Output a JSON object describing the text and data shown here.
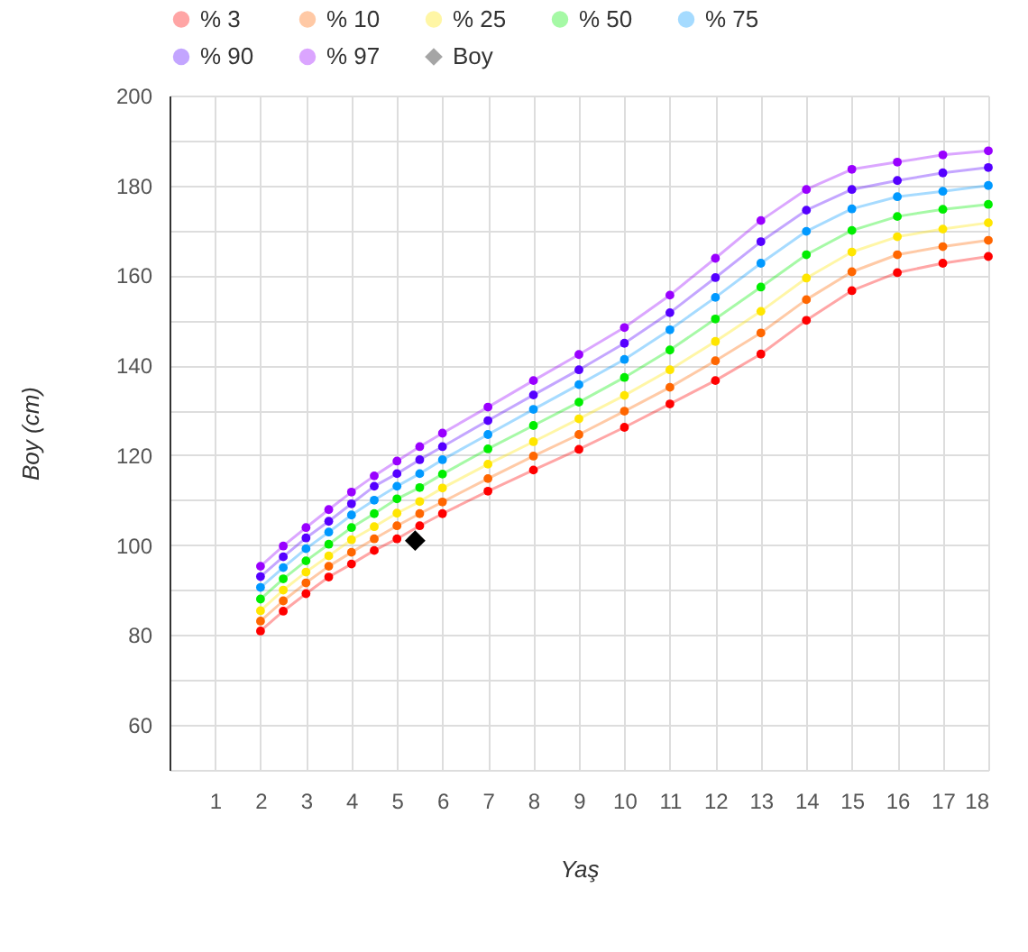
{
  "chart_data": {
    "type": "line",
    "xlabel": "Yaş",
    "ylabel": "Boy (cm)",
    "x": [
      2,
      2.5,
      3,
      3.5,
      4,
      4.5,
      5,
      5.5,
      6,
      7,
      8,
      9,
      10,
      11,
      12,
      13,
      14,
      15,
      16,
      17,
      18
    ],
    "xlim": [
      0,
      18
    ],
    "xticks": [
      1,
      2,
      3,
      4,
      5,
      6,
      7,
      8,
      9,
      10,
      11,
      12,
      13,
      14,
      15,
      16,
      17,
      18
    ],
    "ylim": [
      50,
      200
    ],
    "yticks": [
      {
        "value": 50,
        "label": null
      },
      60,
      {
        "value": 70,
        "label": null
      },
      80,
      {
        "value": 90,
        "label": null
      },
      100,
      {
        "value": 110,
        "label": null
      },
      120,
      {
        "value": 130,
        "label": null
      },
      140,
      {
        "value": 150,
        "label": null
      },
      160,
      {
        "value": 170,
        "label": null
      },
      180,
      {
        "value": 190,
        "label": null
      },
      200
    ],
    "grid": true,
    "legend": "top",
    "marker": "circle",
    "line_style": "solid",
    "series": [
      {
        "name": "% 3",
        "color": "#ff0000",
        "values": [
          80.9,
          85.3,
          89.2,
          92.9,
          95.8,
          98.8,
          101.4,
          104.3,
          107.0,
          112.0,
          116.7,
          121.3,
          126.2,
          131.4,
          136.6,
          142.5,
          150.0,
          156.6,
          160.6,
          162.7,
          164.2
        ]
      },
      {
        "name": "% 10",
        "color": "#ff6600",
        "values": [
          83.1,
          87.6,
          91.6,
          95.3,
          98.4,
          101.4,
          104.3,
          107.0,
          109.6,
          114.8,
          119.8,
          124.6,
          129.8,
          135.1,
          141.0,
          147.2,
          154.6,
          160.8,
          164.6,
          166.4,
          167.8
        ]
      },
      {
        "name": "% 25",
        "color": "#ffe600",
        "values": [
          85.4,
          90.0,
          94.0,
          97.6,
          101.2,
          104.1,
          107.1,
          109.7,
          112.7,
          118.0,
          123.0,
          128.1,
          133.3,
          139.0,
          145.3,
          152.0,
          159.4,
          165.2,
          168.6,
          170.3,
          171.7
        ]
      },
      {
        "name": "% 50",
        "color": "#00ee00",
        "values": [
          88.0,
          92.5,
          96.5,
          100.2,
          103.9,
          107.0,
          110.3,
          112.8,
          115.8,
          121.4,
          126.6,
          131.8,
          137.3,
          143.4,
          150.3,
          157.4,
          164.6,
          170.0,
          173.1,
          174.7,
          175.8
        ]
      },
      {
        "name": "% 75",
        "color": "#0099ff",
        "values": [
          90.6,
          95.0,
          99.2,
          102.9,
          106.7,
          110.0,
          113.1,
          115.9,
          119.0,
          124.6,
          130.2,
          135.7,
          141.3,
          147.9,
          155.1,
          162.7,
          169.8,
          174.8,
          177.5,
          178.7,
          180.0
        ]
      },
      {
        "name": "% 90",
        "color": "#5500ff",
        "values": [
          93.0,
          97.4,
          101.6,
          105.3,
          109.2,
          113.1,
          115.9,
          119.0,
          121.9,
          127.7,
          133.4,
          139.0,
          144.9,
          151.7,
          159.5,
          167.5,
          174.5,
          179.1,
          181.1,
          182.8,
          184.0
        ]
      },
      {
        "name": "% 97",
        "color": "#9900ff",
        "values": [
          95.3,
          99.8,
          103.9,
          107.9,
          111.8,
          115.4,
          118.7,
          121.9,
          124.9,
          130.7,
          136.6,
          142.4,
          148.4,
          155.6,
          163.8,
          172.2,
          179.1,
          183.6,
          185.2,
          186.8,
          187.7
        ]
      },
      {
        "name": "Boy",
        "color": "#000000",
        "type": "scatter",
        "marker": "diamond",
        "x": [
          5.4
        ],
        "values": [
          101
        ]
      }
    ]
  }
}
